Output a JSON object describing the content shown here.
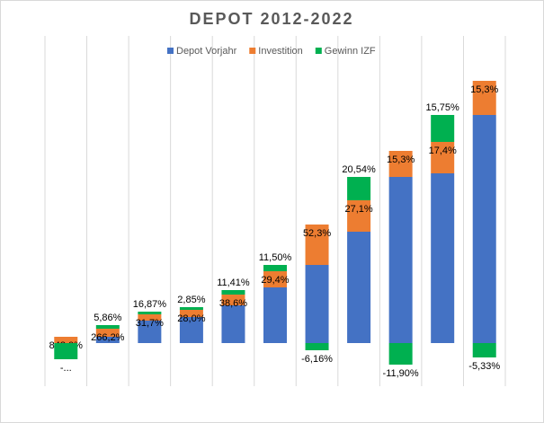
{
  "chart_data": {
    "type": "stacked_bar",
    "title": "DEPOT 2012-2022",
    "categories": [
      null,
      null,
      null,
      null,
      null,
      null,
      null,
      null,
      null,
      null,
      null
    ],
    "ylim": [
      -48,
      342
    ],
    "legend": "top",
    "series": [
      {
        "name": "Depot Vorjahr",
        "color": "#4472c4",
        "values": [
          0,
          7,
          25,
          29,
          42,
          62,
          87,
          124,
          185,
          189,
          254
        ]
      },
      {
        "name": "Investition",
        "color": "#ed7d31",
        "values": [
          7,
          9,
          7,
          8,
          12,
          18,
          45,
          35,
          29,
          35,
          38
        ],
        "value_labels": [
          "848,0%",
          "266,2%",
          "31,7%",
          "28,0%",
          "38,6%",
          "29,4%",
          "52,3%",
          "27,1%",
          "15,3%",
          "17,4%",
          "15,3%"
        ]
      },
      {
        "name": "Gewinn IZF",
        "color": "#00b050",
        "values": [
          -18,
          4,
          3,
          3,
          5,
          7,
          -8,
          26,
          -24,
          30,
          -16
        ],
        "value_labels": [
          "-...",
          "5,86%",
          "16,87%",
          "2,85%",
          "11,41%",
          "11,50%",
          "-6,16%",
          "20,54%",
          "-11,90%",
          "15,75%",
          "-5,33%"
        ]
      }
    ]
  }
}
